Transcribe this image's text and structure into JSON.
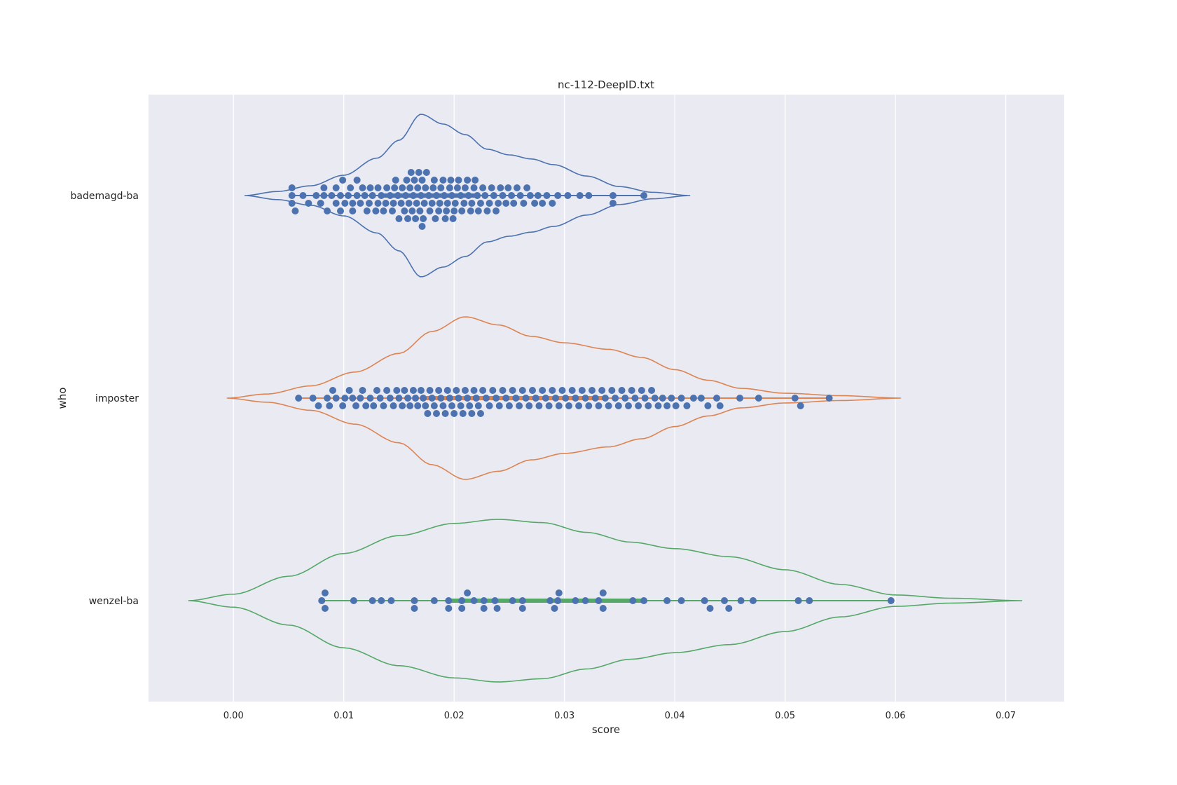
{
  "chart_data": {
    "type": "violin",
    "title": "nc-112-DeepID.txt",
    "xlabel": "score",
    "ylabel": "who",
    "xlim": [
      -0.0077,
      0.0753
    ],
    "grid": true,
    "x_ticks": [
      0.0,
      0.01,
      0.02,
      0.03,
      0.04,
      0.05,
      0.06,
      0.07
    ],
    "x_tick_labels": [
      "0.00",
      "0.01",
      "0.02",
      "0.03",
      "0.04",
      "0.05",
      "0.06",
      "0.07"
    ],
    "categories": [
      "bademagd-ba",
      "imposter",
      "wenzel-ba"
    ],
    "colors": {
      "plot_background": "#eaeaf2",
      "grid": "#ffffff",
      "points": "#4c72b0",
      "violins": [
        "#4c72b0",
        "#dd8452",
        "#55a868"
      ]
    },
    "violins": [
      {
        "category": "bademagd-ba",
        "color": "#4c72b0",
        "min": 0.001,
        "max": 0.0414,
        "density_profile": [
          [
            0.001,
            0.0
          ],
          [
            0.004,
            0.05
          ],
          [
            0.007,
            0.12
          ],
          [
            0.01,
            0.25
          ],
          [
            0.013,
            0.46
          ],
          [
            0.015,
            0.68
          ],
          [
            0.017,
            1.0
          ],
          [
            0.019,
            0.88
          ],
          [
            0.021,
            0.75
          ],
          [
            0.023,
            0.57
          ],
          [
            0.025,
            0.5
          ],
          [
            0.027,
            0.45
          ],
          [
            0.029,
            0.38
          ],
          [
            0.032,
            0.24
          ],
          [
            0.035,
            0.11
          ],
          [
            0.038,
            0.04
          ],
          [
            0.0414,
            0.0
          ]
        ],
        "points": [
          0.0053,
          0.0053,
          0.0053,
          0.0056,
          0.0063,
          0.0068,
          0.0075,
          0.0079,
          0.0082,
          0.0082,
          0.0085,
          0.0089,
          0.0093,
          0.0093,
          0.0097,
          0.0097,
          0.0099,
          0.0101,
          0.0104,
          0.0106,
          0.0108,
          0.0108,
          0.0112,
          0.0112,
          0.0115,
          0.0117,
          0.0119,
          0.0121,
          0.0123,
          0.0124,
          0.0126,
          0.0129,
          0.0131,
          0.0131,
          0.0134,
          0.0136,
          0.0138,
          0.0139,
          0.0142,
          0.0144,
          0.0145,
          0.0146,
          0.0147,
          0.0149,
          0.015,
          0.0152,
          0.0153,
          0.0155,
          0.0156,
          0.0157,
          0.0158,
          0.0159,
          0.016,
          0.0161,
          0.0162,
          0.0163,
          0.0164,
          0.0165,
          0.0166,
          0.0167,
          0.0168,
          0.0169,
          0.017,
          0.0171,
          0.0171,
          0.0172,
          0.0173,
          0.0174,
          0.0175,
          0.0177,
          0.0178,
          0.018,
          0.0181,
          0.0182,
          0.0183,
          0.0184,
          0.0186,
          0.0187,
          0.0188,
          0.019,
          0.0191,
          0.0192,
          0.0193,
          0.0194,
          0.0196,
          0.0197,
          0.0198,
          0.0199,
          0.02,
          0.0201,
          0.0203,
          0.0204,
          0.0206,
          0.0207,
          0.0209,
          0.021,
          0.0212,
          0.0213,
          0.0215,
          0.0216,
          0.0218,
          0.0219,
          0.0221,
          0.0222,
          0.0224,
          0.0226,
          0.0228,
          0.023,
          0.0232,
          0.0234,
          0.0236,
          0.0238,
          0.024,
          0.0242,
          0.0244,
          0.0247,
          0.0249,
          0.0252,
          0.0254,
          0.0257,
          0.026,
          0.0263,
          0.0266,
          0.0269,
          0.0273,
          0.0276,
          0.028,
          0.0284,
          0.0289,
          0.0294,
          0.0303,
          0.0314,
          0.0322,
          0.0344,
          0.0344,
          0.0372
        ]
      },
      {
        "category": "imposter",
        "color": "#dd8452",
        "min": -0.0006,
        "max": 0.0605,
        "density_profile": [
          [
            -0.0006,
            0.0
          ],
          [
            0.003,
            0.05
          ],
          [
            0.007,
            0.15
          ],
          [
            0.011,
            0.32
          ],
          [
            0.015,
            0.55
          ],
          [
            0.018,
            0.82
          ],
          [
            0.021,
            1.0
          ],
          [
            0.024,
            0.9
          ],
          [
            0.027,
            0.76
          ],
          [
            0.03,
            0.68
          ],
          [
            0.034,
            0.6
          ],
          [
            0.037,
            0.5
          ],
          [
            0.04,
            0.35
          ],
          [
            0.043,
            0.22
          ],
          [
            0.046,
            0.12
          ],
          [
            0.05,
            0.06
          ],
          [
            0.055,
            0.03
          ],
          [
            0.0605,
            0.0
          ]
        ],
        "points": [
          0.0059,
          0.0072,
          0.0077,
          0.0085,
          0.0087,
          0.009,
          0.0093,
          0.0099,
          0.0101,
          0.0105,
          0.0108,
          0.0111,
          0.0115,
          0.0117,
          0.012,
          0.0124,
          0.0127,
          0.013,
          0.0133,
          0.0136,
          0.0139,
          0.0142,
          0.0145,
          0.0148,
          0.015,
          0.0153,
          0.0155,
          0.0158,
          0.016,
          0.0163,
          0.0165,
          0.0167,
          0.017,
          0.0172,
          0.0174,
          0.0176,
          0.0178,
          0.018,
          0.0182,
          0.0184,
          0.0186,
          0.0188,
          0.019,
          0.0192,
          0.0194,
          0.0196,
          0.0198,
          0.02,
          0.0202,
          0.0204,
          0.0206,
          0.0208,
          0.021,
          0.0212,
          0.0214,
          0.0216,
          0.0218,
          0.022,
          0.0222,
          0.0224,
          0.0226,
          0.0229,
          0.0232,
          0.0235,
          0.0238,
          0.0241,
          0.0244,
          0.0247,
          0.025,
          0.0253,
          0.0256,
          0.0259,
          0.0262,
          0.0265,
          0.0268,
          0.0271,
          0.0274,
          0.0277,
          0.028,
          0.0283,
          0.0286,
          0.0289,
          0.0292,
          0.0295,
          0.0298,
          0.0301,
          0.0304,
          0.0307,
          0.031,
          0.0313,
          0.0316,
          0.0319,
          0.0322,
          0.0325,
          0.0328,
          0.0331,
          0.0334,
          0.0337,
          0.034,
          0.0343,
          0.0346,
          0.0349,
          0.0352,
          0.0355,
          0.0358,
          0.0361,
          0.0364,
          0.0367,
          0.037,
          0.0373,
          0.0376,
          0.0379,
          0.0382,
          0.0385,
          0.0389,
          0.0393,
          0.0397,
          0.0401,
          0.0406,
          0.0411,
          0.0417,
          0.0424,
          0.043,
          0.0438,
          0.0441,
          0.0459,
          0.0476,
          0.0509,
          0.0514,
          0.054
        ]
      },
      {
        "category": "wenzel-ba",
        "color": "#55a868",
        "min": -0.0041,
        "max": 0.0715,
        "density_profile": [
          [
            -0.0041,
            0.0
          ],
          [
            0.0,
            0.08
          ],
          [
            0.005,
            0.3
          ],
          [
            0.01,
            0.58
          ],
          [
            0.015,
            0.8
          ],
          [
            0.02,
            0.95
          ],
          [
            0.024,
            1.0
          ],
          [
            0.028,
            0.96
          ],
          [
            0.032,
            0.84
          ],
          [
            0.036,
            0.72
          ],
          [
            0.04,
            0.64
          ],
          [
            0.045,
            0.54
          ],
          [
            0.05,
            0.38
          ],
          [
            0.055,
            0.2
          ],
          [
            0.06,
            0.07
          ],
          [
            0.065,
            0.03
          ],
          [
            0.0715,
            0.0
          ]
        ],
        "points": [
          0.008,
          0.0083,
          0.0083,
          0.0109,
          0.0126,
          0.0134,
          0.0143,
          0.0164,
          0.0164,
          0.0182,
          0.0195,
          0.0195,
          0.0207,
          0.0207,
          0.0212,
          0.0218,
          0.0227,
          0.0227,
          0.0237,
          0.0239,
          0.0253,
          0.0262,
          0.0262,
          0.0287,
          0.0291,
          0.0294,
          0.0295,
          0.031,
          0.0319,
          0.0331,
          0.0335,
          0.0335,
          0.0362,
          0.0372,
          0.0393,
          0.0406,
          0.0427,
          0.0432,
          0.0445,
          0.0449,
          0.046,
          0.0471,
          0.0512,
          0.0522,
          0.0596
        ]
      }
    ]
  }
}
